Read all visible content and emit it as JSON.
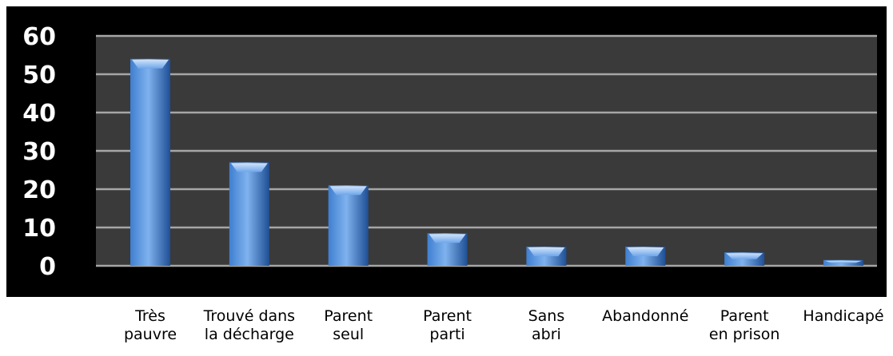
{
  "chart_data": {
    "type": "bar",
    "categories": [
      [
        "Très",
        "pauvre"
      ],
      [
        "Trouvé dans",
        "la décharge"
      ],
      [
        "Parent",
        "seul"
      ],
      [
        "Parent",
        "parti"
      ],
      [
        "Sans",
        "abri"
      ],
      [
        "Abandonné"
      ],
      [
        "Parent",
        "en prison"
      ],
      [
        "Handicapé"
      ]
    ],
    "values": [
      54,
      27,
      21,
      8.5,
      5,
      5,
      3.5,
      1.5
    ],
    "yticks": [
      "0",
      "10",
      "20",
      "30",
      "40",
      "50",
      "60"
    ],
    "ylim": [
      0,
      60
    ],
    "grid": true,
    "colors": {
      "background": "#000000",
      "plot_area": "#3a3a3a",
      "grid": "#a6a6a6",
      "bar_light": "#7fb2ee",
      "bar_mid": "#3f7fd0",
      "bar_dark": "#1f4f95"
    }
  }
}
